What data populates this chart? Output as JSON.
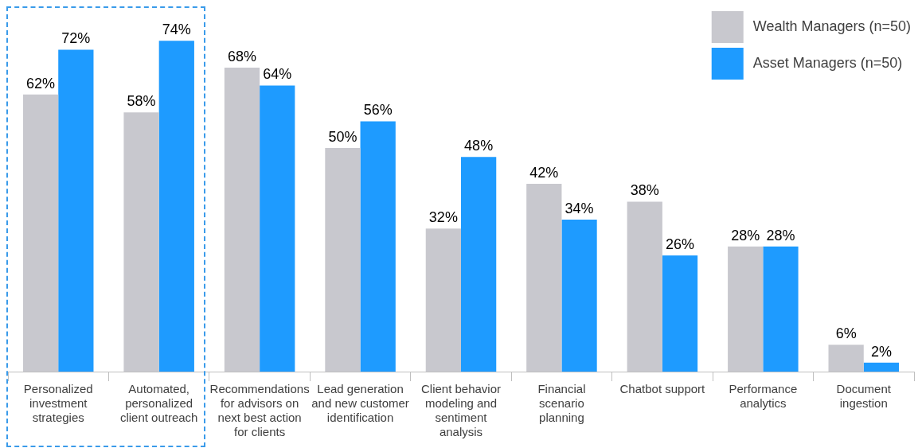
{
  "chart_data": {
    "type": "bar",
    "categories": [
      "Personalized investment strategies",
      "Automated, personalized client outreach",
      "Recommendations for advisors on next best action for clients",
      "Lead generation and new customer identification",
      "Client behavior modeling and sentiment analysis",
      "Financial scenario planning",
      "Chatbot support",
      "Performance analytics",
      "Document ingestion"
    ],
    "series": [
      {
        "name": "Wealth Managers (n=50)",
        "color": "#c8c8ce",
        "values": [
          62,
          58,
          68,
          50,
          32,
          42,
          38,
          28,
          6
        ],
        "value_labels": [
          "62%",
          "58%",
          "68%",
          "50%",
          "32%",
          "42%",
          "38%",
          "28%",
          "6%"
        ]
      },
      {
        "name": "Asset Managers (n=50)",
        "color": "#1e9bff",
        "values": [
          72,
          74,
          64,
          56,
          48,
          34,
          26,
          28,
          2
        ],
        "value_labels": [
          "72%",
          "74%",
          "64%",
          "56%",
          "48%",
          "34%",
          "26%",
          "28%",
          "2%"
        ]
      }
    ],
    "legend": "top right",
    "grid": false
  }
}
